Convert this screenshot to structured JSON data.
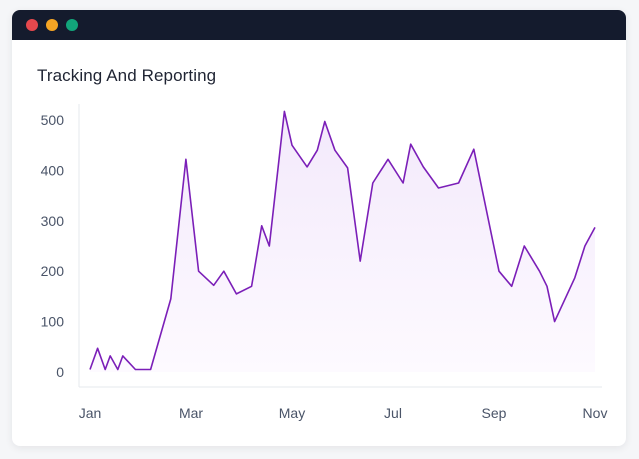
{
  "window": {
    "controls": [
      {
        "name": "close",
        "color": "#e5484d"
      },
      {
        "name": "minimize",
        "color": "#f5a524"
      },
      {
        "name": "maximize",
        "color": "#12a57a"
      }
    ]
  },
  "chart_data": {
    "type": "area",
    "title": "Tracking And Reporting",
    "xlabel": "",
    "ylabel": "",
    "ylim": [
      0,
      500
    ],
    "yticks": [
      0,
      100,
      200,
      300,
      400,
      500
    ],
    "xlim": [
      0,
      10
    ],
    "xticks": [
      "Jan",
      "Mar",
      "May",
      "Jul",
      "Sep",
      "Nov"
    ],
    "grid": false,
    "colors": {
      "line": "#7b1fb8",
      "fill_top": "#f3e9fb",
      "fill_bottom": "#fdfaff"
    },
    "series": [
      {
        "x": [
          0,
          0.15,
          0.3,
          0.4,
          0.55,
          0.65,
          0.9,
          1.2,
          1.6,
          1.9,
          2.15,
          2.45,
          2.65,
          2.9,
          3.2,
          3.4,
          3.55,
          3.85,
          4.0,
          4.3,
          4.5,
          4.65,
          4.85,
          5.1,
          5.35,
          5.6,
          5.9,
          6.2,
          6.35,
          6.6,
          6.9,
          7.3,
          7.6,
          8.1,
          8.35,
          8.6,
          8.9,
          9.05,
          9.2,
          9.6,
          9.8,
          10.0
        ],
        "y": [
          5,
          47,
          5,
          32,
          5,
          32,
          5,
          5,
          145,
          422,
          200,
          172,
          200,
          155,
          170,
          290,
          250,
          517,
          450,
          407,
          440,
          497,
          440,
          405,
          220,
          375,
          422,
          375,
          452,
          407,
          365,
          375,
          442,
          200,
          170,
          250,
          200,
          170,
          100,
          187,
          250,
          287
        ]
      }
    ]
  }
}
